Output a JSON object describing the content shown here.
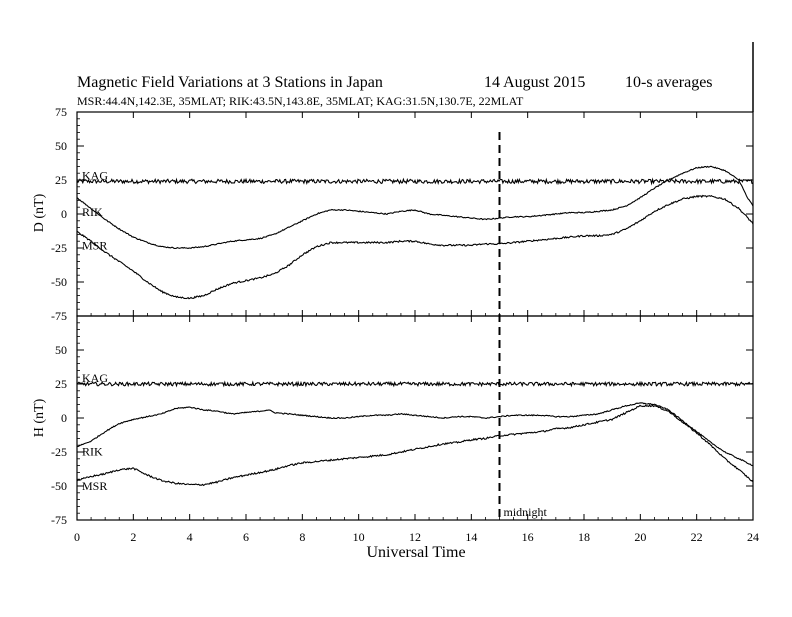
{
  "chart_data": {
    "type": "line",
    "title": "Magnetic Field Variations at 3 Stations in Japan",
    "date": "14  August  2015",
    "averaging": "10-s averages",
    "subtitle": "MSR:44.4N,142.3E, 35MLAT;  RIK:43.5N,143.8E, 35MLAT;  KAG:31.5N,130.7E, 22MLAT",
    "xlabel": "Universal Time",
    "xlim": [
      0,
      24
    ],
    "xticks": [
      0,
      2,
      4,
      6,
      8,
      10,
      12,
      14,
      16,
      18,
      20,
      22,
      24
    ],
    "ylim": [
      -75,
      75
    ],
    "yticks": [
      -75,
      -50,
      -25,
      0,
      25,
      50,
      75
    ],
    "marker": {
      "x": 15,
      "label": "midnight",
      "style": "dashed"
    },
    "panels": [
      {
        "ylabel": "D (nT)",
        "series": [
          {
            "name": "KAG",
            "noise": 1.5,
            "points": [
              [
                0,
                24
              ],
              [
                24,
                24
              ]
            ]
          },
          {
            "name": "RIK",
            "noise": 0.4,
            "points": [
              [
                0,
                12
              ],
              [
                0.5,
                4
              ],
              [
                1,
                -4
              ],
              [
                1.5,
                -11
              ],
              [
                2,
                -17
              ],
              [
                2.5,
                -21
              ],
              [
                3,
                -24
              ],
              [
                3.5,
                -25
              ],
              [
                4,
                -25
              ],
              [
                4.5,
                -24
              ],
              [
                5,
                -22
              ],
              [
                5.5,
                -20
              ],
              [
                6,
                -19
              ],
              [
                6.5,
                -18
              ],
              [
                7,
                -15
              ],
              [
                7.5,
                -10
              ],
              [
                8,
                -5
              ],
              [
                8.5,
                0
              ],
              [
                9,
                3
              ],
              [
                9.5,
                3
              ],
              [
                10,
                2
              ],
              [
                10.5,
                1
              ],
              [
                11,
                0
              ],
              [
                11.5,
                2
              ],
              [
                12,
                3
              ],
              [
                12.5,
                0
              ],
              [
                13,
                -1
              ],
              [
                13.5,
                -2
              ],
              [
                14,
                -3
              ],
              [
                14.5,
                -4
              ],
              [
                15,
                -3
              ],
              [
                15.5,
                -2
              ],
              [
                16,
                -2
              ],
              [
                16.5,
                -1
              ],
              [
                17,
                0
              ],
              [
                17.5,
                1
              ],
              [
                18,
                1
              ],
              [
                18.5,
                2
              ],
              [
                19,
                3
              ],
              [
                19.5,
                6
              ],
              [
                20,
                12
              ],
              [
                20.5,
                19
              ],
              [
                21,
                25
              ],
              [
                21.5,
                30
              ],
              [
                22,
                34
              ],
              [
                22.5,
                35
              ],
              [
                23,
                32
              ],
              [
                23.5,
                25
              ],
              [
                23.8,
                12
              ],
              [
                24,
                6
              ]
            ]
          },
          {
            "name": "MSR",
            "noise": 0.6,
            "points": [
              [
                0,
                -13
              ],
              [
                0.5,
                -20
              ],
              [
                1,
                -28
              ],
              [
                1.5,
                -35
              ],
              [
                2,
                -42
              ],
              [
                2.5,
                -50
              ],
              [
                3,
                -57
              ],
              [
                3.5,
                -61
              ],
              [
                4,
                -62
              ],
              [
                4.5,
                -60
              ],
              [
                5,
                -55
              ],
              [
                5.5,
                -51
              ],
              [
                6,
                -49
              ],
              [
                6.5,
                -47
              ],
              [
                7,
                -44
              ],
              [
                7.5,
                -38
              ],
              [
                8,
                -30
              ],
              [
                8.5,
                -24
              ],
              [
                9,
                -21
              ],
              [
                9.5,
                -21
              ],
              [
                10,
                -21
              ],
              [
                10.5,
                -21
              ],
              [
                11,
                -21
              ],
              [
                11.5,
                -20
              ],
              [
                12,
                -20
              ],
              [
                12.5,
                -22
              ],
              [
                13,
                -23
              ],
              [
                13.5,
                -23
              ],
              [
                14,
                -23
              ],
              [
                14.5,
                -22
              ],
              [
                15,
                -22
              ],
              [
                15.5,
                -21
              ],
              [
                16,
                -20
              ],
              [
                16.5,
                -19
              ],
              [
                17,
                -18
              ],
              [
                17.5,
                -17
              ],
              [
                18,
                -16
              ],
              [
                18.5,
                -16
              ],
              [
                19,
                -15
              ],
              [
                19.5,
                -11
              ],
              [
                20,
                -5
              ],
              [
                20.5,
                2
              ],
              [
                21,
                7
              ],
              [
                21.5,
                11
              ],
              [
                22,
                13
              ],
              [
                22.5,
                13
              ],
              [
                23,
                11
              ],
              [
                23.5,
                4
              ],
              [
                24,
                -7
              ]
            ]
          }
        ]
      },
      {
        "ylabel": "H (nT)",
        "series": [
          {
            "name": "KAG",
            "noise": 1.3,
            "points": [
              [
                0,
                25
              ],
              [
                24,
                25
              ]
            ]
          },
          {
            "name": "RIK",
            "noise": 0.4,
            "points": [
              [
                0,
                -21
              ],
              [
                0.5,
                -17
              ],
              [
                1,
                -10
              ],
              [
                1.5,
                -4
              ],
              [
                2,
                -1
              ],
              [
                2.5,
                1
              ],
              [
                3,
                3
              ],
              [
                3.5,
                7
              ],
              [
                4,
                8
              ],
              [
                4.5,
                6
              ],
              [
                5,
                5
              ],
              [
                5.5,
                3
              ],
              [
                6,
                4
              ],
              [
                6.5,
                5
              ],
              [
                6.8,
                6
              ],
              [
                7,
                4
              ],
              [
                7.5,
                3
              ],
              [
                8,
                2
              ],
              [
                8.5,
                1
              ],
              [
                9,
                0
              ],
              [
                9.5,
                0
              ],
              [
                10,
                1
              ],
              [
                10.5,
                2
              ],
              [
                11,
                2
              ],
              [
                11.5,
                3
              ],
              [
                12,
                2
              ],
              [
                12.5,
                1
              ],
              [
                13,
                0
              ],
              [
                13.5,
                1
              ],
              [
                14,
                1
              ],
              [
                14.5,
                0
              ],
              [
                15,
                1
              ],
              [
                15.5,
                2
              ],
              [
                16,
                2
              ],
              [
                16.5,
                2
              ],
              [
                17,
                1
              ],
              [
                17.5,
                1
              ],
              [
                18,
                2
              ],
              [
                18.5,
                3
              ],
              [
                19,
                6
              ],
              [
                19.5,
                9
              ],
              [
                20,
                11
              ],
              [
                20.5,
                10
              ],
              [
                21,
                6
              ],
              [
                21.5,
                -2
              ],
              [
                22,
                -10
              ],
              [
                22.5,
                -18
              ],
              [
                23,
                -25
              ],
              [
                23.5,
                -30
              ],
              [
                24,
                -35
              ]
            ]
          },
          {
            "name": "MSR",
            "noise": 0.6,
            "points": [
              [
                0,
                -46
              ],
              [
                0.5,
                -43
              ],
              [
                1,
                -41
              ],
              [
                1.5,
                -38
              ],
              [
                2,
                -37
              ],
              [
                2.5,
                -42
              ],
              [
                3,
                -46
              ],
              [
                3.5,
                -48
              ],
              [
                4,
                -49
              ],
              [
                4.5,
                -49
              ],
              [
                5,
                -47
              ],
              [
                5.5,
                -44
              ],
              [
                6,
                -42
              ],
              [
                6.5,
                -40
              ],
              [
                7,
                -38
              ],
              [
                7.5,
                -35
              ],
              [
                8,
                -33
              ],
              [
                8.5,
                -32
              ],
              [
                9,
                -31
              ],
              [
                9.5,
                -30
              ],
              [
                10,
                -29
              ],
              [
                10.5,
                -28
              ],
              [
                11,
                -27
              ],
              [
                11.5,
                -25
              ],
              [
                12,
                -23
              ],
              [
                12.5,
                -21
              ],
              [
                13,
                -19
              ],
              [
                13.5,
                -18
              ],
              [
                14,
                -16
              ],
              [
                14.5,
                -15
              ],
              [
                15,
                -13
              ],
              [
                15.5,
                -12
              ],
              [
                16,
                -11
              ],
              [
                16.5,
                -10
              ],
              [
                17,
                -8
              ],
              [
                17.5,
                -7
              ],
              [
                18,
                -5
              ],
              [
                18.5,
                -3
              ],
              [
                19,
                -1
              ],
              [
                19.5,
                4
              ],
              [
                20,
                9
              ],
              [
                20.5,
                9
              ],
              [
                21,
                5
              ],
              [
                21.5,
                -3
              ],
              [
                22,
                -11
              ],
              [
                22.5,
                -20
              ],
              [
                23,
                -30
              ],
              [
                23.5,
                -38
              ],
              [
                24,
                -47
              ]
            ]
          }
        ]
      }
    ]
  }
}
